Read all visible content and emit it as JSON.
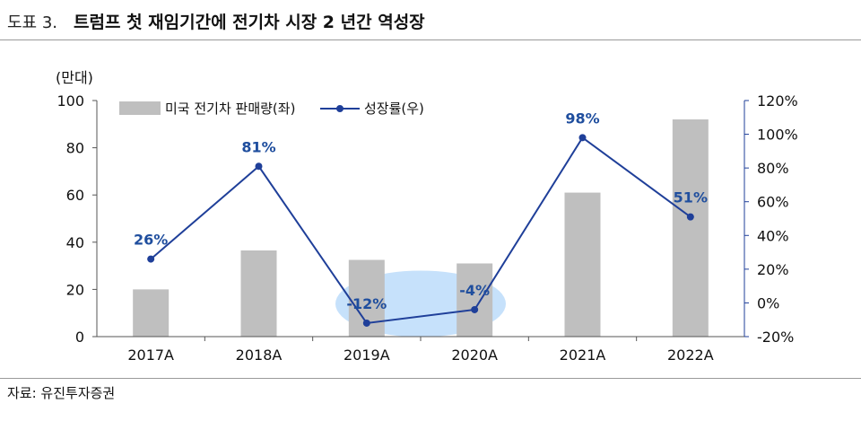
{
  "header": {
    "figure_label": "도표 3.",
    "title": "트럼프 첫 재임기간에 전기차 시장 2 년간 역성장"
  },
  "source": "자료: 유진투자증권",
  "colors": {
    "bar": "#bfbfbf",
    "line": "#1f3f99",
    "highlight": "#bcdcfa"
  },
  "chart_data": {
    "type": "bar",
    "categories": [
      "2017A",
      "2018A",
      "2019A",
      "2020A",
      "2021A",
      "2022A"
    ],
    "series": [
      {
        "name": "미국 전기차 판매량(좌)",
        "type": "bar",
        "axis": "left",
        "values": [
          20,
          36.5,
          32.5,
          31,
          61,
          92
        ]
      },
      {
        "name": "성장률(우)",
        "type": "line",
        "axis": "right",
        "values": [
          26,
          81,
          -12,
          -4,
          98,
          51
        ],
        "labels": [
          "26%",
          "81%",
          "-12%",
          "-4%",
          "98%",
          "51%"
        ]
      }
    ],
    "y_left": {
      "unit_label": "(만대)",
      "ylim": [
        0,
        100
      ],
      "ticks": [
        "0",
        "20",
        "40",
        "60",
        "80",
        "100"
      ]
    },
    "y_right": {
      "ylim": [
        -20,
        120
      ],
      "ticks": [
        "-20%",
        "0%",
        "20%",
        "40%",
        "60%",
        "80%",
        "100%",
        "120%"
      ]
    },
    "grid": false,
    "legend_position": "top-left",
    "highlight_categories": [
      "2019A",
      "2020A"
    ]
  }
}
